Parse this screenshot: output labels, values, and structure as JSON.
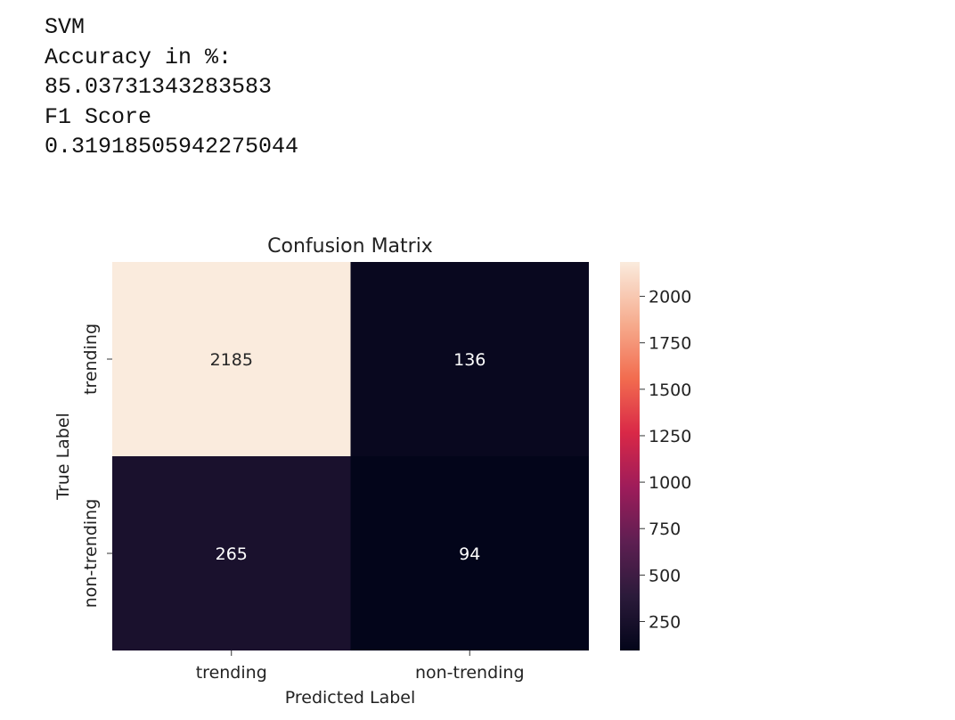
{
  "output": {
    "lines": [
      "SVM",
      "Accuracy in %:",
      "85.03731343283583",
      "F1 Score",
      "0.31918505942275044"
    ]
  },
  "chart_data": {
    "type": "heatmap",
    "title": "Confusion Matrix",
    "xlabel": "Predicted Label",
    "ylabel": "True Label",
    "x_categories": [
      "trending",
      "non-trending"
    ],
    "y_categories": [
      "trending",
      "non-trending"
    ],
    "values": [
      [
        2185,
        136
      ],
      [
        265,
        94
      ]
    ],
    "colorbar": {
      "min": 94,
      "max": 2185,
      "ticks": [
        250,
        500,
        750,
        1000,
        1250,
        1500,
        1750,
        2000
      ],
      "colormap": "rocket"
    }
  }
}
